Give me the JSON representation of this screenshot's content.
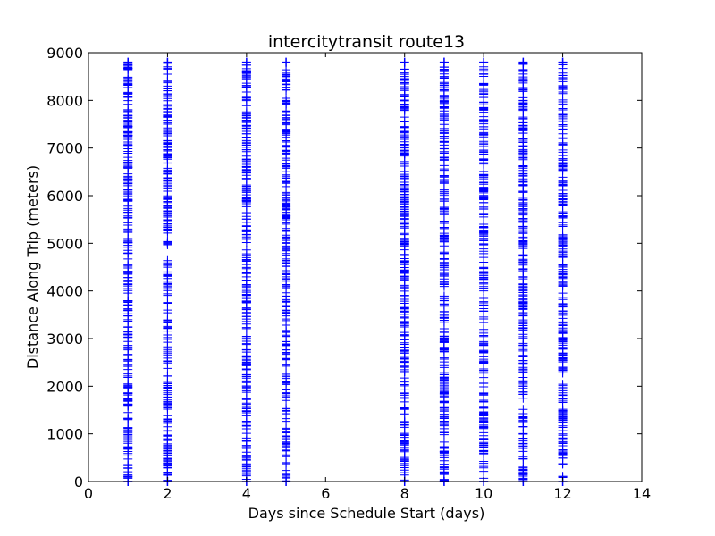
{
  "chart_data": {
    "type": "scatter",
    "title": "intercitytransit route13",
    "xlabel": "Days since Schedule Start (days)",
    "ylabel": "Distance Along Trip (meters)",
    "xlim": [
      0,
      14
    ],
    "ylim": [
      0,
      9000
    ],
    "x_ticks": [
      "0",
      "2",
      "4",
      "6",
      "8",
      "10",
      "12",
      "14"
    ],
    "y_ticks": [
      "0",
      "1000",
      "2000",
      "3000",
      "4000",
      "5000",
      "6000",
      "7000",
      "8000",
      "9000"
    ],
    "grid": false,
    "marker": "+",
    "colors": {
      "marker": "#0000ff",
      "axes": "#000000"
    },
    "series": [
      {
        "x": 1,
        "y_range": [
          0,
          8800
        ]
      },
      {
        "x": 2,
        "y_range": [
          0,
          8800
        ]
      },
      {
        "x": 4,
        "y_range": [
          0,
          8800
        ]
      },
      {
        "x": 5,
        "y_range": [
          0,
          8800
        ]
      },
      {
        "x": 8,
        "y_range": [
          0,
          8800
        ]
      },
      {
        "x": 9,
        "y_range": [
          0,
          8800
        ]
      },
      {
        "x": 10,
        "y_range": [
          0,
          8800
        ]
      },
      {
        "x": 11,
        "y_range": [
          0,
          8800
        ]
      },
      {
        "x": 12,
        "y_range": [
          0,
          8800
        ]
      }
    ]
  }
}
